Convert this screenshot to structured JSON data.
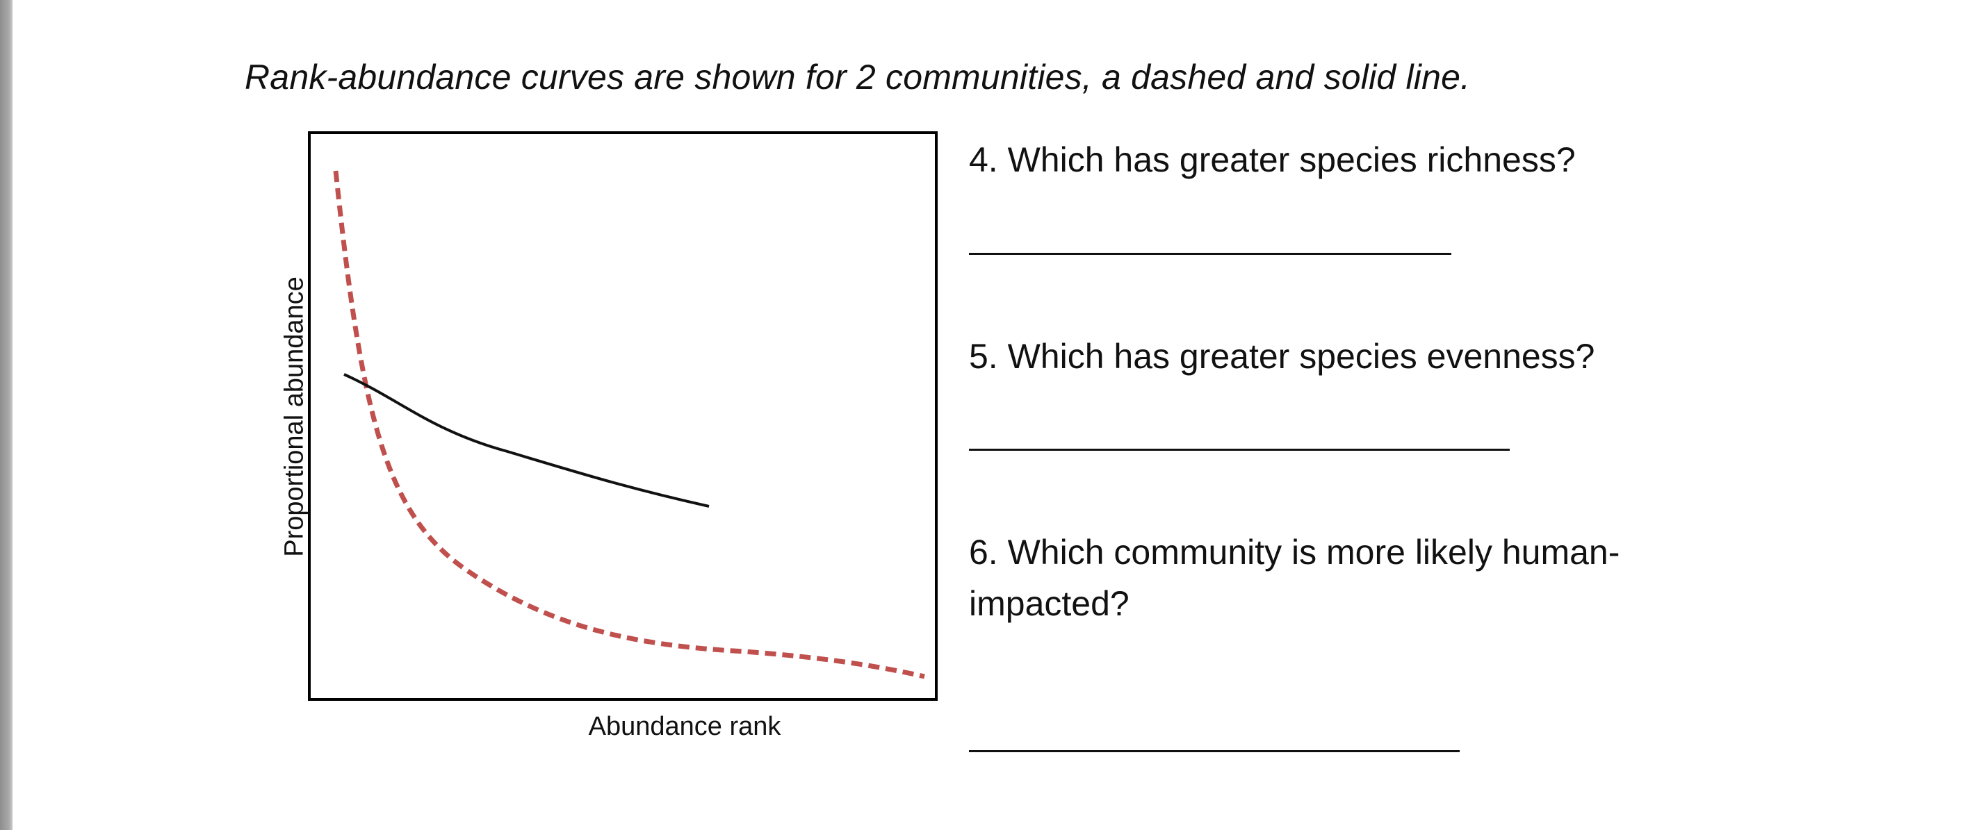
{
  "intro": "Rank-abundance curves are shown for 2 communities, a dashed and solid line.",
  "questions": {
    "q4": "4. Which has greater species richness?",
    "q5": "5. Which has greater species evenness?",
    "q6": "6. Which community is more likely human-impacted?"
  },
  "figure": {
    "ylabel": "Proportional abundance",
    "xlabel": "Abundance rank",
    "colors": {
      "dashed": "#c0504d",
      "solid": "#111111",
      "frame": "#000000"
    }
  }
}
